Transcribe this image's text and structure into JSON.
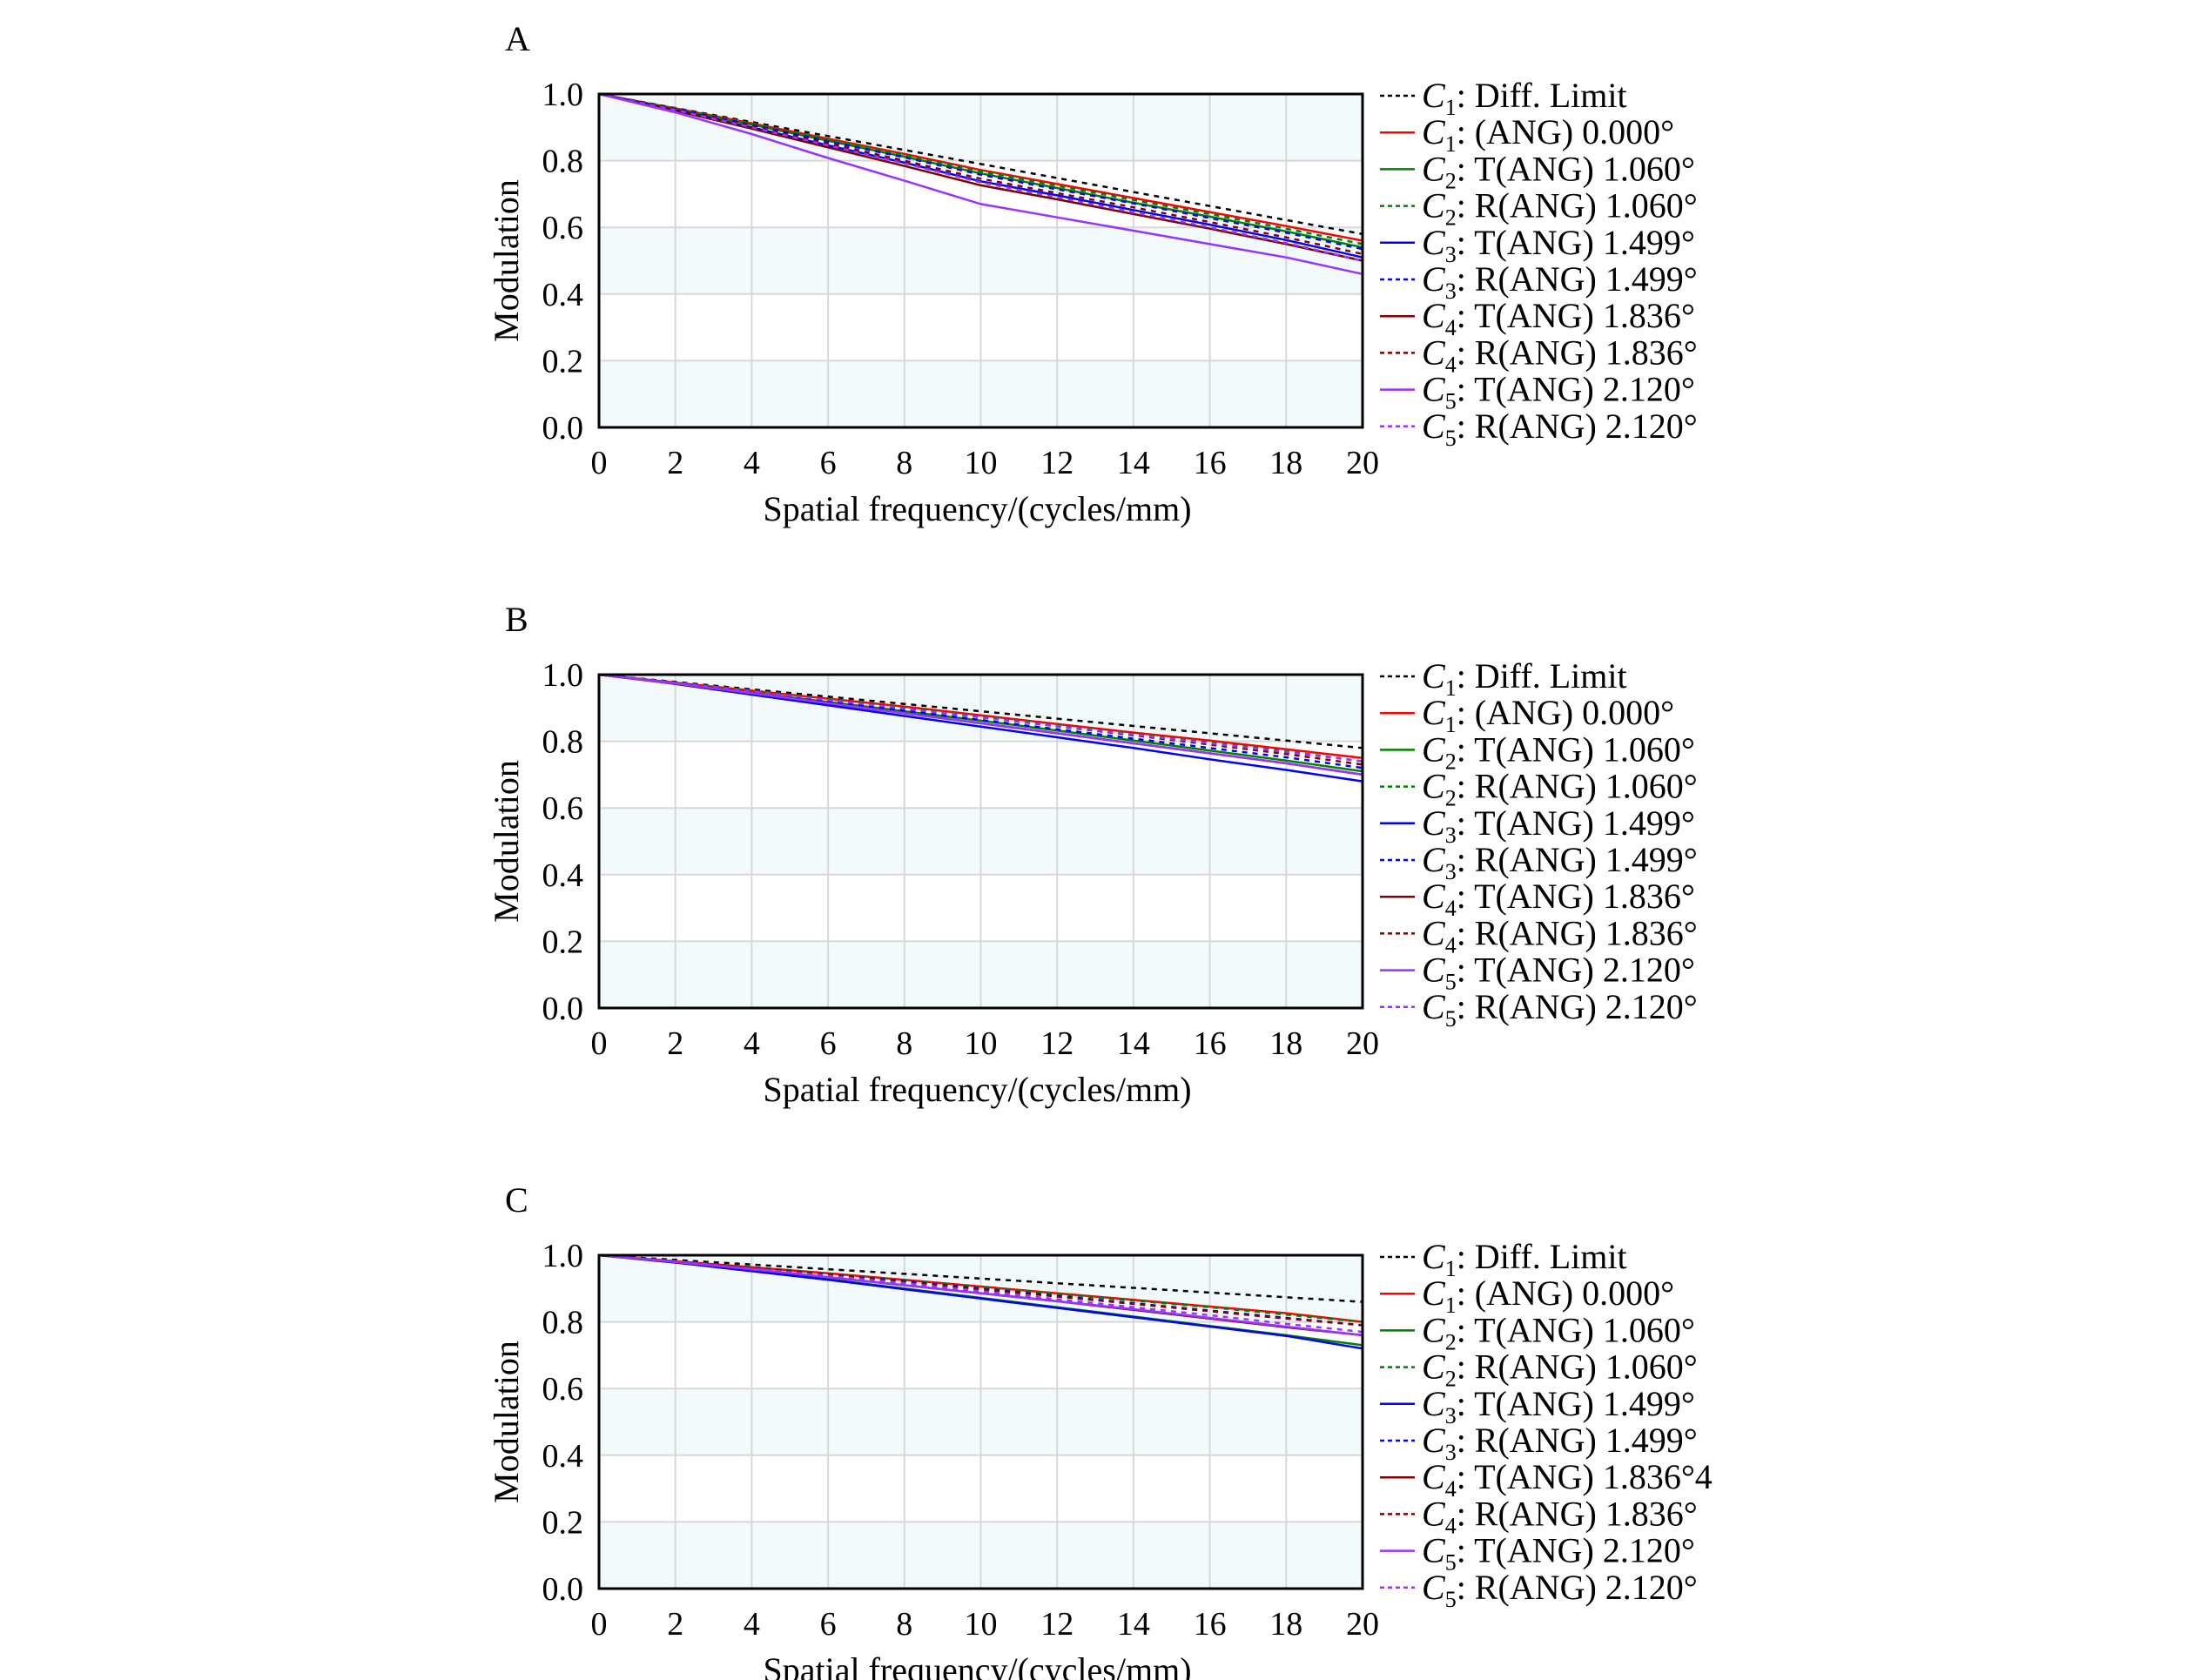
{
  "chart_data": [
    {
      "type": "line",
      "panel_label": "A",
      "xlabel": "Spatial frequency/(cycles/mm)",
      "ylabel": "Modulation",
      "xlim": [
        0,
        20
      ],
      "ylim": [
        0,
        1
      ],
      "xticks": [
        "0",
        "2",
        "4",
        "6",
        "8",
        "10",
        "12",
        "14",
        "16",
        "18",
        "20"
      ],
      "yticks": [
        "0.0",
        "0.2",
        "0.4",
        "0.6",
        "0.8",
        "1.0"
      ],
      "grid": true,
      "legend_position": "right",
      "x": [
        0,
        2,
        4,
        6,
        8,
        10,
        12,
        14,
        16,
        18,
        20
      ],
      "series": [
        {
          "sym": "C",
          "sub": "1",
          "label": ": Diff. Limit",
          "color": "#000000",
          "dash": "dot",
          "values": [
            1.0,
            0.958,
            0.916,
            0.874,
            0.832,
            0.79,
            0.748,
            0.706,
            0.664,
            0.622,
            0.58
          ]
        },
        {
          "sym": "C",
          "sub": "1",
          "label": ": (ANG) 0.000°",
          "color": "#ff0000",
          "dash": "solid",
          "values": [
            1.0,
            0.957,
            0.912,
            0.866,
            0.82,
            0.772,
            0.73,
            0.688,
            0.646,
            0.604,
            0.56
          ]
        },
        {
          "sym": "C",
          "sub": "2",
          "label": ": T(ANG) 1.060°",
          "color": "#008000",
          "dash": "solid",
          "values": [
            1.0,
            0.955,
            0.908,
            0.86,
            0.812,
            0.762,
            0.718,
            0.674,
            0.632,
            0.588,
            0.54
          ]
        },
        {
          "sym": "C",
          "sub": "2",
          "label": ": R(ANG) 1.060°",
          "color": "#008000",
          "dash": "dot",
          "values": [
            1.0,
            0.956,
            0.91,
            0.864,
            0.817,
            0.768,
            0.725,
            0.682,
            0.64,
            0.596,
            0.55
          ]
        },
        {
          "sym": "C",
          "sub": "3",
          "label": ": T(ANG) 1.499°",
          "color": "#0000ff",
          "dash": "solid",
          "values": [
            1.0,
            0.952,
            0.9,
            0.846,
            0.794,
            0.738,
            0.696,
            0.652,
            0.608,
            0.562,
            0.51
          ]
        },
        {
          "sym": "C",
          "sub": "3",
          "label": ": R(ANG) 1.499°",
          "color": "#0000ff",
          "dash": "dot",
          "values": [
            1.0,
            0.955,
            0.907,
            0.858,
            0.81,
            0.758,
            0.714,
            0.672,
            0.628,
            0.584,
            0.535
          ]
        },
        {
          "sym": "C",
          "sub": "4",
          "label": ": T(ANG) 1.836°",
          "color": "#800000",
          "dash": "solid",
          "values": [
            1.0,
            0.95,
            0.896,
            0.84,
            0.784,
            0.726,
            0.684,
            0.64,
            0.596,
            0.55,
            0.5
          ]
        },
        {
          "sym": "C",
          "sub": "4",
          "label": ": R(ANG) 1.836°",
          "color": "#800000",
          "dash": "dot",
          "values": [
            1.0,
            0.953,
            0.904,
            0.852,
            0.8,
            0.746,
            0.703,
            0.66,
            0.616,
            0.57,
            0.52
          ]
        },
        {
          "sym": "C",
          "sub": "5",
          "label": ": T(ANG) 2.120°",
          "color": "#9933ff",
          "dash": "solid",
          "values": [
            1.0,
            0.945,
            0.88,
            0.808,
            0.74,
            0.67,
            0.63,
            0.59,
            0.55,
            0.51,
            0.46
          ]
        },
        {
          "sym": "C",
          "sub": "5",
          "label": ": R(ANG) 2.120°",
          "color": "#9933ff",
          "dash": "dot",
          "values": [
            1.0,
            0.952,
            0.9,
            0.846,
            0.792,
            0.735,
            0.69,
            0.645,
            0.6,
            0.553,
            0.5
          ]
        }
      ]
    },
    {
      "type": "line",
      "panel_label": "B",
      "xlabel": "Spatial frequency/(cycles/mm)",
      "ylabel": "Modulation",
      "xlim": [
        0,
        20
      ],
      "ylim": [
        0,
        1
      ],
      "xticks": [
        "0",
        "2",
        "4",
        "6",
        "8",
        "10",
        "12",
        "14",
        "16",
        "18",
        "20"
      ],
      "yticks": [
        "0.0",
        "0.2",
        "0.4",
        "0.6",
        "0.8",
        "1.0"
      ],
      "grid": true,
      "legend_position": "right",
      "x": [
        0,
        2,
        4,
        6,
        8,
        10,
        12,
        14,
        16,
        18,
        20
      ],
      "series": [
        {
          "sym": "C",
          "sub": "1",
          "label": ": Diff. Limit",
          "color": "#000000",
          "dash": "dot",
          "values": [
            1.0,
            0.978,
            0.956,
            0.934,
            0.912,
            0.89,
            0.868,
            0.846,
            0.824,
            0.802,
            0.78
          ]
        },
        {
          "sym": "C",
          "sub": "1",
          "label": ": (ANG) 0.000°",
          "color": "#ff0000",
          "dash": "solid",
          "values": [
            1.0,
            0.976,
            0.952,
            0.928,
            0.904,
            0.878,
            0.852,
            0.826,
            0.802,
            0.776,
            0.75
          ]
        },
        {
          "sym": "C",
          "sub": "2",
          "label": ": T(ANG) 1.060°",
          "color": "#008000",
          "dash": "solid",
          "values": [
            1.0,
            0.974,
            0.946,
            0.918,
            0.89,
            0.862,
            0.832,
            0.802,
            0.772,
            0.742,
            0.71
          ]
        },
        {
          "sym": "C",
          "sub": "2",
          "label": ": R(ANG) 1.060°",
          "color": "#008000",
          "dash": "dot",
          "values": [
            1.0,
            0.976,
            0.952,
            0.926,
            0.9,
            0.874,
            0.848,
            0.822,
            0.796,
            0.77,
            0.74
          ]
        },
        {
          "sym": "C",
          "sub": "3",
          "label": ": T(ANG) 1.499°",
          "color": "#0000ff",
          "dash": "solid",
          "values": [
            1.0,
            0.972,
            0.94,
            0.908,
            0.876,
            0.844,
            0.812,
            0.78,
            0.746,
            0.714,
            0.68
          ]
        },
        {
          "sym": "C",
          "sub": "3",
          "label": ": R(ANG) 1.499°",
          "color": "#0000ff",
          "dash": "dot",
          "values": [
            1.0,
            0.975,
            0.948,
            0.92,
            0.892,
            0.864,
            0.836,
            0.808,
            0.78,
            0.752,
            0.72
          ]
        },
        {
          "sym": "C",
          "sub": "4",
          "label": ": T(ANG) 1.836°",
          "color": "#800000",
          "dash": "solid",
          "values": [
            1.0,
            0.973,
            0.944,
            0.914,
            0.884,
            0.854,
            0.824,
            0.794,
            0.764,
            0.734,
            0.7
          ]
        },
        {
          "sym": "C",
          "sub": "4",
          "label": ": R(ANG) 1.836°",
          "color": "#800000",
          "dash": "dot",
          "values": [
            1.0,
            0.976,
            0.95,
            0.924,
            0.898,
            0.872,
            0.845,
            0.818,
            0.79,
            0.762,
            0.73
          ]
        },
        {
          "sym": "C",
          "sub": "5",
          "label": ": T(ANG) 2.120°",
          "color": "#9933ff",
          "dash": "solid",
          "values": [
            1.0,
            0.973,
            0.944,
            0.914,
            0.884,
            0.854,
            0.824,
            0.794,
            0.764,
            0.734,
            0.7
          ]
        },
        {
          "sym": "C",
          "sub": "5",
          "label": ": R(ANG) 2.120°",
          "color": "#9933ff",
          "dash": "dot",
          "values": [
            1.0,
            0.976,
            0.95,
            0.924,
            0.898,
            0.872,
            0.846,
            0.82,
            0.794,
            0.768,
            0.74
          ]
        }
      ]
    },
    {
      "type": "line",
      "panel_label": "C",
      "xlabel": "Spatial frequency/(cycles/mm)",
      "ylabel": "Modulation",
      "xlim": [
        0,
        20
      ],
      "ylim": [
        0,
        1
      ],
      "xticks": [
        "0",
        "2",
        "4",
        "6",
        "8",
        "10",
        "12",
        "14",
        "16",
        "18",
        "20"
      ],
      "yticks": [
        "0.0",
        "0.2",
        "0.4",
        "0.6",
        "0.8",
        "1.0"
      ],
      "grid": true,
      "legend_position": "right",
      "x": [
        0,
        2,
        4,
        6,
        8,
        10,
        12,
        14,
        16,
        18,
        20
      ],
      "series": [
        {
          "sym": "C",
          "sub": "1",
          "label": ": Diff. Limit",
          "color": "#000000",
          "dash": "dot",
          "values": [
            1.0,
            0.986,
            0.972,
            0.958,
            0.944,
            0.93,
            0.916,
            0.902,
            0.888,
            0.874,
            0.86
          ]
        },
        {
          "sym": "C",
          "sub": "1",
          "label": ": (ANG) 0.000°",
          "color": "#ff0000",
          "dash": "solid",
          "values": [
            1.0,
            0.982,
            0.964,
            0.946,
            0.926,
            0.906,
            0.886,
            0.866,
            0.846,
            0.826,
            0.8
          ]
        },
        {
          "sym": "C",
          "sub": "2",
          "label": ": T(ANG) 1.060°",
          "color": "#008000",
          "dash": "solid",
          "values": [
            1.0,
            0.978,
            0.954,
            0.928,
            0.9,
            0.872,
            0.844,
            0.816,
            0.788,
            0.76,
            0.73
          ]
        },
        {
          "sym": "C",
          "sub": "2",
          "label": ": R(ANG) 1.060°",
          "color": "#008000",
          "dash": "dot",
          "values": [
            1.0,
            0.982,
            0.964,
            0.944,
            0.924,
            0.904,
            0.884,
            0.864,
            0.844,
            0.822,
            0.8
          ]
        },
        {
          "sym": "C",
          "sub": "3",
          "label": ": T(ANG) 1.499°",
          "color": "#0000ff",
          "dash": "solid",
          "values": [
            1.0,
            0.978,
            0.952,
            0.926,
            0.898,
            0.87,
            0.842,
            0.814,
            0.786,
            0.758,
            0.72
          ]
        },
        {
          "sym": "C",
          "sub": "3",
          "label": ": R(ANG) 1.499°",
          "color": "#0000ff",
          "dash": "dot",
          "values": [
            1.0,
            0.982,
            0.962,
            0.942,
            0.922,
            0.9,
            0.878,
            0.856,
            0.834,
            0.812,
            0.79
          ]
        },
        {
          "sym": "C",
          "sub": "4",
          "label": ": T(ANG) 1.836°4",
          "color": "#800000",
          "dash": "solid",
          "values": [
            1.0,
            0.98,
            0.958,
            0.934,
            0.91,
            0.886,
            0.862,
            0.836,
            0.81,
            0.784,
            0.76
          ]
        },
        {
          "sym": "C",
          "sub": "4",
          "label": ": R(ANG) 1.836°",
          "color": "#800000",
          "dash": "dot",
          "values": [
            1.0,
            0.982,
            0.962,
            0.942,
            0.92,
            0.898,
            0.876,
            0.854,
            0.832,
            0.81,
            0.79
          ]
        },
        {
          "sym": "C",
          "sub": "5",
          "label": ": T(ANG) 2.120°",
          "color": "#9933ff",
          "dash": "solid",
          "values": [
            1.0,
            0.98,
            0.958,
            0.934,
            0.91,
            0.886,
            0.862,
            0.838,
            0.812,
            0.786,
            0.76
          ]
        },
        {
          "sym": "C",
          "sub": "5",
          "label": ": R(ANG) 2.120°",
          "color": "#9933ff",
          "dash": "dot",
          "values": [
            1.0,
            0.982,
            0.96,
            0.938,
            0.916,
            0.892,
            0.868,
            0.844,
            0.82,
            0.794,
            0.77
          ]
        }
      ]
    }
  ],
  "colors": {
    "plot_background": "#f2fafc",
    "band": "#ffffff",
    "grid": "#d8d8d8"
  }
}
